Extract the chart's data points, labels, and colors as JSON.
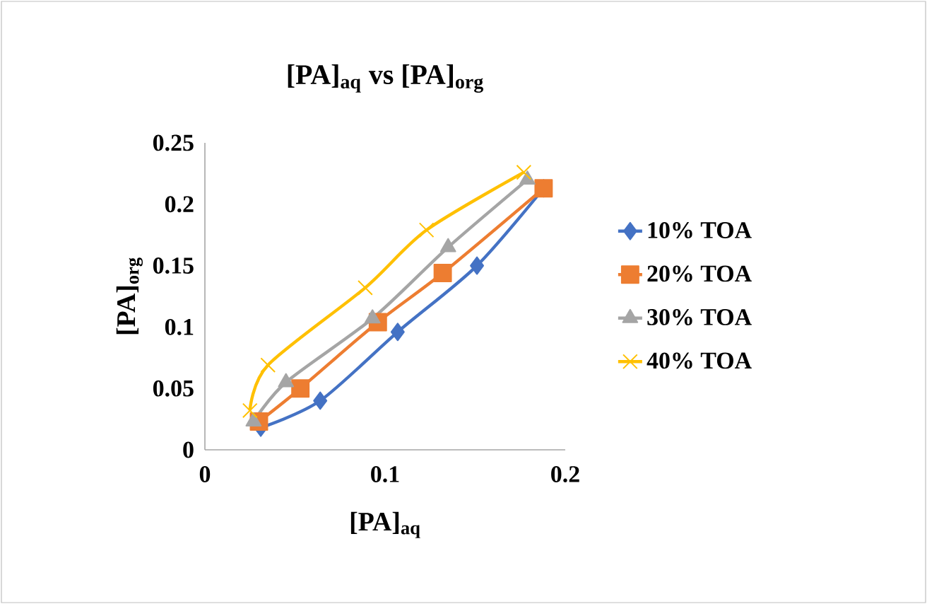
{
  "chart_data": {
    "type": "line",
    "title": "[PA]$_{aq}$ vs [PA]$_{org}$",
    "xlabel": "[PA]$_{aq}$",
    "ylabel": "[PA]$_{org}$",
    "xlim": [
      0,
      0.2
    ],
    "ylim": [
      0,
      0.25
    ],
    "xticks": [
      0,
      0.1,
      0.2
    ],
    "yticks": [
      0,
      0.05,
      0.1,
      0.15,
      0.2,
      0.25
    ],
    "grid": false,
    "legend": "right",
    "series": [
      {
        "name": "10% TOA",
        "color": "#4472c4",
        "marker": "diamond",
        "x": [
          0.031,
          0.064,
          0.107,
          0.151,
          0.188
        ],
        "values": [
          0.018,
          0.04,
          0.096,
          0.15,
          0.213
        ]
      },
      {
        "name": "20% TOA",
        "color": "#ed7d31",
        "marker": "square",
        "x": [
          0.03,
          0.053,
          0.096,
          0.132,
          0.188
        ],
        "values": [
          0.023,
          0.05,
          0.104,
          0.144,
          0.213
        ]
      },
      {
        "name": "30% TOA",
        "color": "#a5a5a5",
        "marker": "triangle",
        "x": [
          0.027,
          0.045,
          0.093,
          0.135,
          0.179
        ],
        "values": [
          0.023,
          0.055,
          0.107,
          0.165,
          0.22
        ]
      },
      {
        "name": "40% TOA",
        "color": "#ffc000",
        "marker": "cross",
        "x": [
          0.025,
          0.035,
          0.089,
          0.123,
          0.177
        ],
        "values": [
          0.032,
          0.069,
          0.132,
          0.179,
          0.226
        ]
      }
    ]
  }
}
